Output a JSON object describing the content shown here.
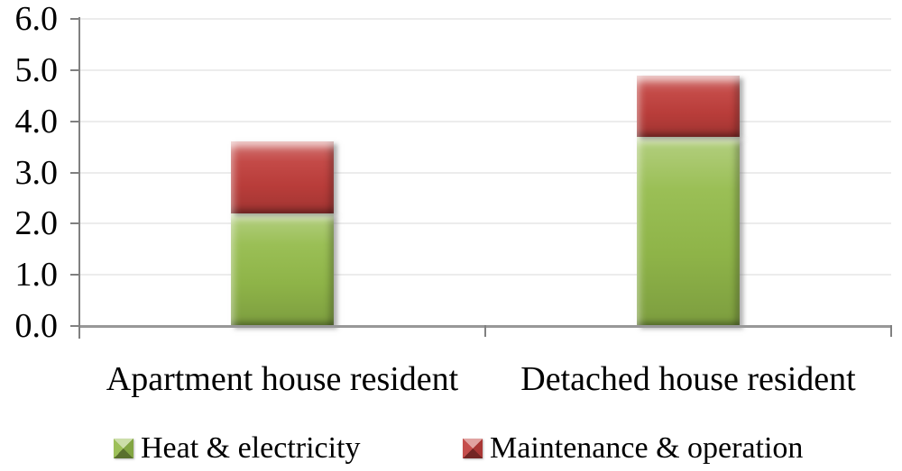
{
  "chart_data": {
    "type": "bar",
    "stacked": true,
    "title": "",
    "xlabel": "",
    "ylabel": "",
    "categories": [
      "Apartment house resident",
      "Detached house resident"
    ],
    "series": [
      {
        "name": "Heat & electricity",
        "color": "#94bb4b",
        "values": [
          2.2,
          3.7
        ]
      },
      {
        "name": "Maintenance & operation",
        "color": "#c03f3c",
        "values": [
          1.4,
          1.2
        ]
      }
    ],
    "totals": [
      3.6,
      4.9
    ],
    "ylim": [
      0,
      6
    ],
    "ytick_step": 1.0,
    "ytick_labels": [
      "0.0",
      "1.0",
      "2.0",
      "3.0",
      "4.0",
      "5.0",
      "6.0"
    ],
    "grid": true,
    "legend_position": "bottom",
    "colors": {
      "axis": "#808080",
      "baseline": "#989898",
      "gridline": "#ececec",
      "text": "#000000",
      "background": "#ffffff"
    }
  }
}
